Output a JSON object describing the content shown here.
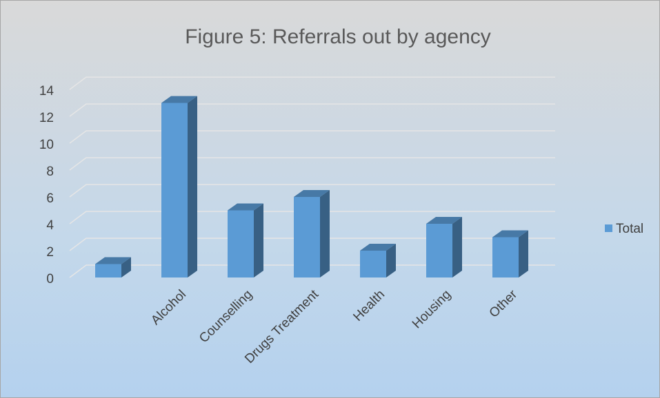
{
  "chart_data": {
    "type": "bar",
    "title": "Figure 5: Referrals out by agency",
    "categories": [
      null,
      "Alcohol",
      "Counselling",
      "Drugs Treatment",
      "Health",
      "Housing",
      "Other"
    ],
    "series": [
      {
        "name": "Total",
        "color": "#5b9bd5",
        "values": [
          1,
          13,
          5,
          6,
          2,
          4,
          3
        ]
      }
    ],
    "ylim": [
      0,
      14
    ],
    "yticks": [
      0,
      2,
      4,
      6,
      8,
      10,
      12,
      14
    ],
    "grid": true,
    "legend": "right"
  }
}
